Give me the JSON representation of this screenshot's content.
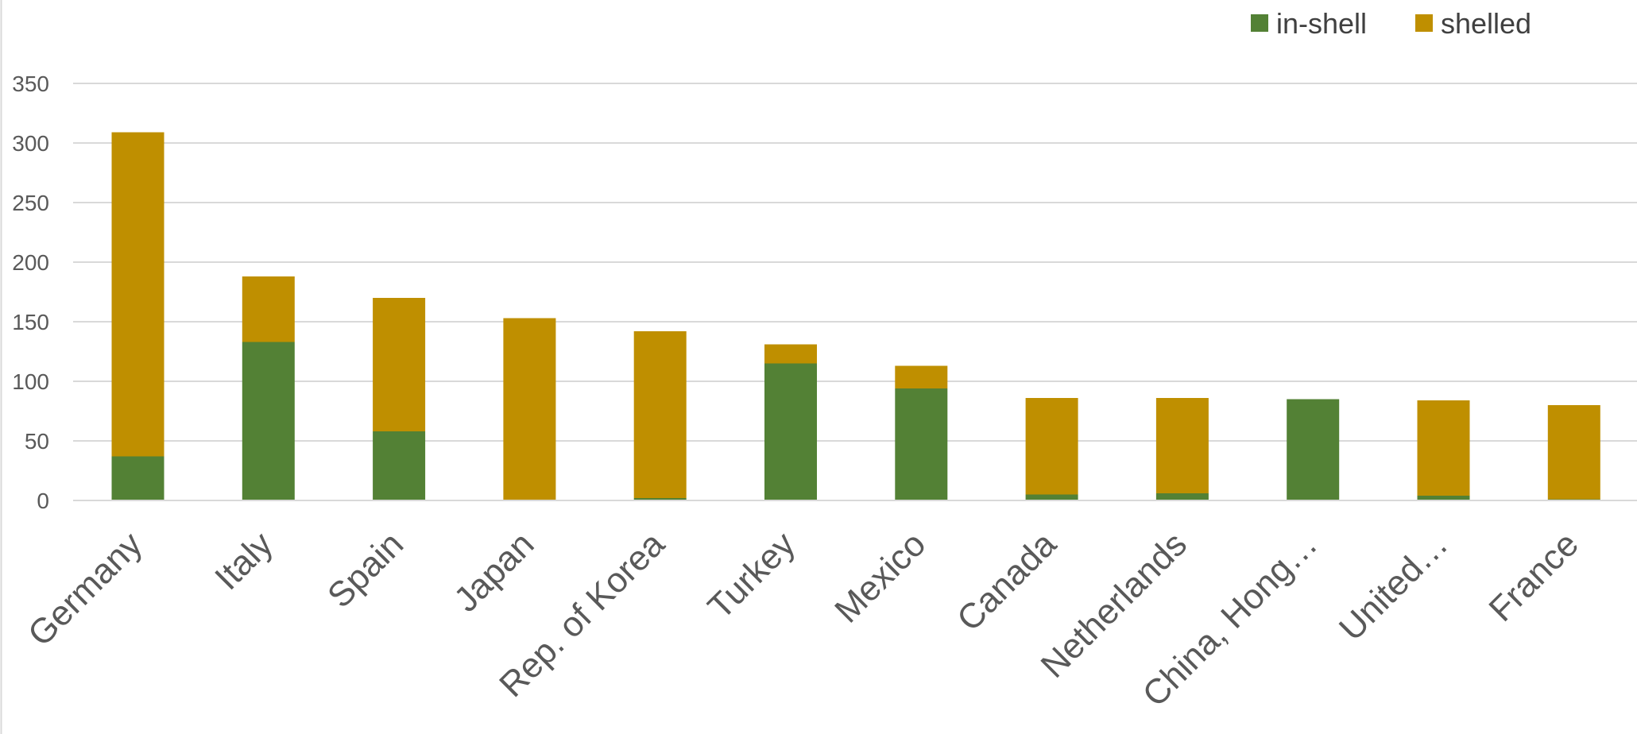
{
  "chart_data": {
    "type": "bar",
    "stacked": true,
    "title": "",
    "xlabel": "",
    "ylabel": "",
    "categories": [
      "Germany",
      "Italy",
      "Spain",
      "Japan",
      "Rep. of Korea",
      "Turkey",
      "Mexico",
      "Canada",
      "Netherlands",
      "China, Hong…",
      "United…",
      "France"
    ],
    "series": [
      {
        "name": "in-shell",
        "color": "#538135",
        "values": [
          37,
          133,
          58,
          0,
          2,
          115,
          94,
          5,
          6,
          85,
          4,
          1
        ]
      },
      {
        "name": "shelled",
        "color": "#BF8F00",
        "values": [
          272,
          55,
          112,
          153,
          140,
          16,
          19,
          81,
          80,
          0,
          80,
          79
        ]
      }
    ],
    "ylim": [
      0,
      350
    ],
    "yticks": [
      0,
      50,
      100,
      150,
      200,
      250,
      300,
      350
    ],
    "grid": true,
    "legend_position": "top-right"
  }
}
